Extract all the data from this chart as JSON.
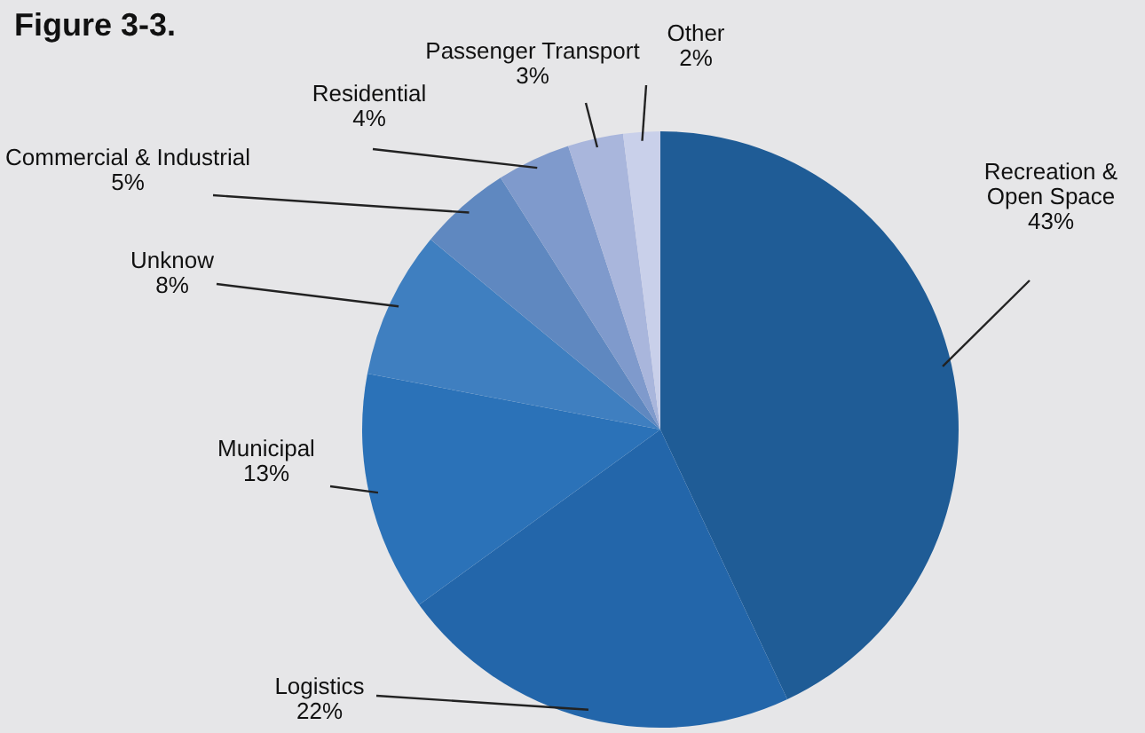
{
  "chart_data": {
    "type": "pie",
    "title": "Figure 3-3.",
    "categories": [
      "Recreation & Open Space",
      "Logistics",
      "Municipal",
      "Unknow",
      "Commercial & Industrial",
      "Residential",
      "Passenger Transport",
      "Other"
    ],
    "values": [
      43,
      22,
      13,
      8,
      5,
      4,
      3,
      2
    ],
    "colors": [
      "#1f5c96",
      "#2366aa",
      "#2b72b8",
      "#3f7fc0",
      "#5f88c0",
      "#7f9acc",
      "#a9b6dc",
      "#c9d0ea"
    ],
    "value_labels": [
      "43%",
      "22%",
      "13%",
      "8%",
      "5%",
      "4%",
      "3%",
      "2%"
    ]
  }
}
